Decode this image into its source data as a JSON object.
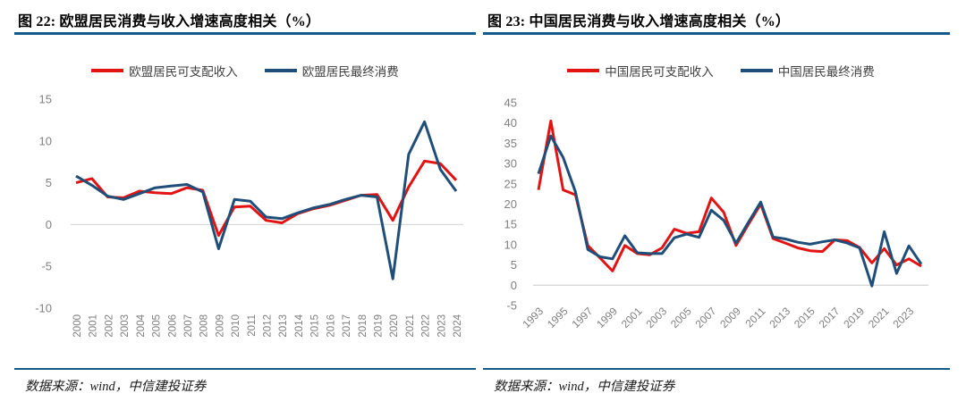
{
  "panels": [
    {
      "source_note": "数据来源：wind，中信建投证券"
    },
    {
      "source_note": "数据来源：wind，中信建投证券"
    }
  ],
  "colors": {
    "income_red": "#e21413",
    "consumption_blue": "#1f4e79",
    "rule_blue": "#155a8a",
    "gridline": "#d9d9d9",
    "axis_label_gray": "#7f7f7f"
  },
  "chart_data": [
    {
      "type": "line",
      "title": "图 22: 欧盟居民消费与收入增速高度相关（%）",
      "categories": [
        "2000",
        "2001",
        "2002",
        "2003",
        "2004",
        "2005",
        "2006",
        "2007",
        "2008",
        "2009",
        "2010",
        "2011",
        "2012",
        "2013",
        "2014",
        "2015",
        "2016",
        "2017",
        "2018",
        "2019",
        "2020",
        "2021",
        "2022",
        "2023",
        "2024"
      ],
      "series": [
        {
          "name": "欧盟居民可支配收入",
          "color": "#e21413",
          "values": [
            5.0,
            5.5,
            3.3,
            3.2,
            4.0,
            3.8,
            3.7,
            4.4,
            4.1,
            -1.3,
            2.1,
            2.2,
            0.5,
            0.2,
            1.3,
            1.9,
            2.3,
            2.9,
            3.5,
            3.6,
            0.5,
            4.5,
            7.6,
            7.3,
            5.3
          ]
        },
        {
          "name": "欧盟居民最终消费",
          "color": "#1f4e79",
          "values": [
            5.8,
            4.7,
            3.4,
            3.0,
            3.7,
            4.4,
            4.6,
            4.8,
            3.9,
            -2.9,
            3.0,
            2.8,
            0.9,
            0.7,
            1.4,
            2.0,
            2.4,
            3.0,
            3.5,
            3.3,
            -6.5,
            8.4,
            12.3,
            6.6,
            4.0
          ]
        }
      ],
      "ylim": [
        -10,
        15
      ],
      "yticks": [
        15,
        10,
        5,
        0,
        -5,
        -10
      ],
      "x_tick_step": 1,
      "x_label_rotation": 90,
      "grid": "zero-line-only",
      "legend_position": "top"
    },
    {
      "type": "line",
      "title": "图 23: 中国居民消费与收入增速高度相关（%）",
      "categories": [
        "1993",
        "1994",
        "1995",
        "1996",
        "1997",
        "1998",
        "1999",
        "2000",
        "2001",
        "2002",
        "2003",
        "2004",
        "2005",
        "2006",
        "2007",
        "2008",
        "2009",
        "2010",
        "2011",
        "2012",
        "2013",
        "2014",
        "2015",
        "2016",
        "2017",
        "2018",
        "2019",
        "2020",
        "2021",
        "2022",
        "2023",
        "2024"
      ],
      "series": [
        {
          "name": "中国居民可支配收入",
          "color": "#e21413",
          "values": [
            23.5,
            40.5,
            23.5,
            22.3,
            9.8,
            6.7,
            3.5,
            9.8,
            7.8,
            7.5,
            9.2,
            13.8,
            12.8,
            13.2,
            21.5,
            18.0,
            9.8,
            15.0,
            20.0,
            11.5,
            10.4,
            9.2,
            8.5,
            8.3,
            11.2,
            11.0,
            9.3,
            5.5,
            9.0,
            5.0,
            6.5,
            4.7
          ]
        },
        {
          "name": "中国居民最终消费",
          "color": "#1f4e79",
          "values": [
            27.5,
            36.8,
            31.5,
            23.0,
            8.8,
            7.0,
            6.5,
            12.2,
            8.0,
            7.8,
            7.8,
            11.7,
            12.6,
            11.8,
            18.5,
            16.0,
            10.4,
            15.5,
            20.5,
            11.9,
            11.4,
            10.6,
            10.1,
            10.7,
            11.2,
            10.4,
            9.2,
            -0.2,
            13.2,
            2.9,
            9.7,
            5.2
          ]
        }
      ],
      "ylim": [
        -5,
        45
      ],
      "yticks": [
        45,
        40,
        35,
        30,
        25,
        20,
        15,
        10,
        5,
        0,
        -5
      ],
      "x_tick_step": 2,
      "x_label_rotation": 45,
      "grid": "zero-line-only",
      "legend_position": "top"
    }
  ]
}
